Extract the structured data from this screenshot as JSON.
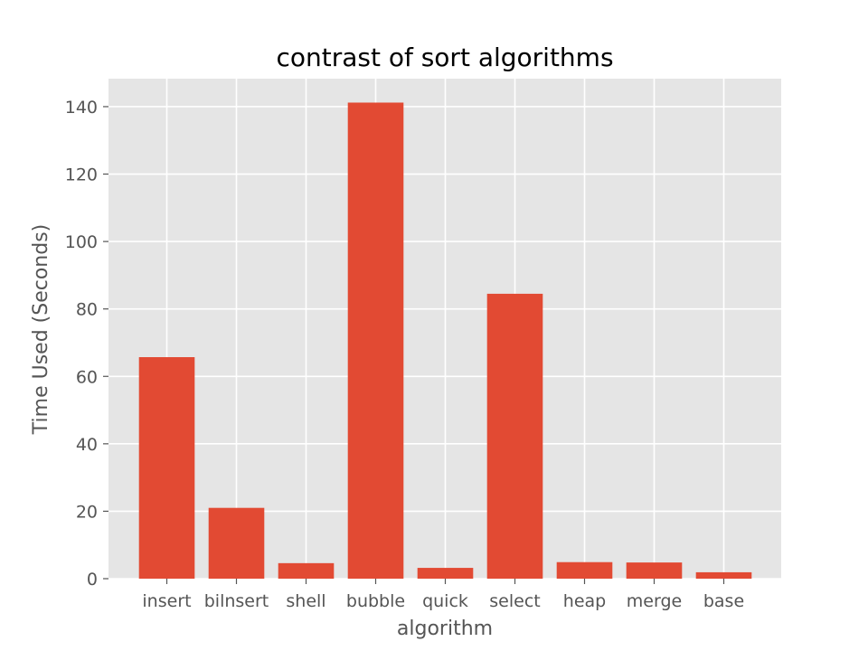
{
  "chart_data": {
    "type": "bar",
    "title": "contrast of sort algorithms",
    "xlabel": "algorithm",
    "ylabel": "Time Used (Seconds)",
    "categories": [
      "insert",
      "bilnsert",
      "shell",
      "bubble",
      "quick",
      "select",
      "heap",
      "merge",
      "base"
    ],
    "values": [
      65.7,
      21.0,
      4.6,
      141.2,
      3.2,
      84.5,
      4.9,
      4.8,
      1.9
    ],
    "yticks": [
      0,
      20,
      40,
      60,
      80,
      100,
      120,
      140
    ],
    "ylim": [
      0,
      148.3
    ],
    "grid": true,
    "legend": "none",
    "colors": {
      "bar": "#E24A33",
      "background": "#E5E5E5",
      "grid": "#FFFFFF"
    }
  }
}
